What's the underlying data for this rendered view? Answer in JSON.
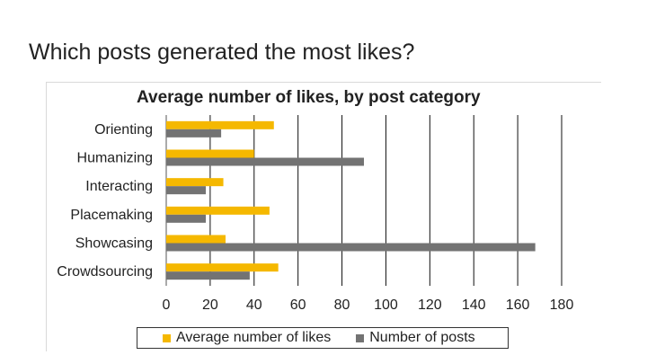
{
  "slide": {
    "title": "Which posts generated the most likes?"
  },
  "chart_data": {
    "type": "bar",
    "orientation": "horizontal",
    "title": "Average number of likes, by post category",
    "categories": [
      "Orienting",
      "Humanizing",
      "Interacting",
      "Placemaking",
      "Showcasing",
      "Crowdsourcing"
    ],
    "series": [
      {
        "name": "Average number of likes",
        "color": "#f5b800",
        "values": [
          49,
          40,
          26,
          47,
          27,
          51
        ]
      },
      {
        "name": "Number of posts",
        "color": "#737373",
        "values": [
          25,
          90,
          18,
          18,
          168,
          38
        ]
      }
    ],
    "xlim": [
      0,
      180
    ],
    "xticks": [
      "0",
      "20",
      "40",
      "60",
      "80",
      "100",
      "120",
      "140",
      "160",
      "180"
    ],
    "grid": true,
    "legend_position": "bottom"
  }
}
